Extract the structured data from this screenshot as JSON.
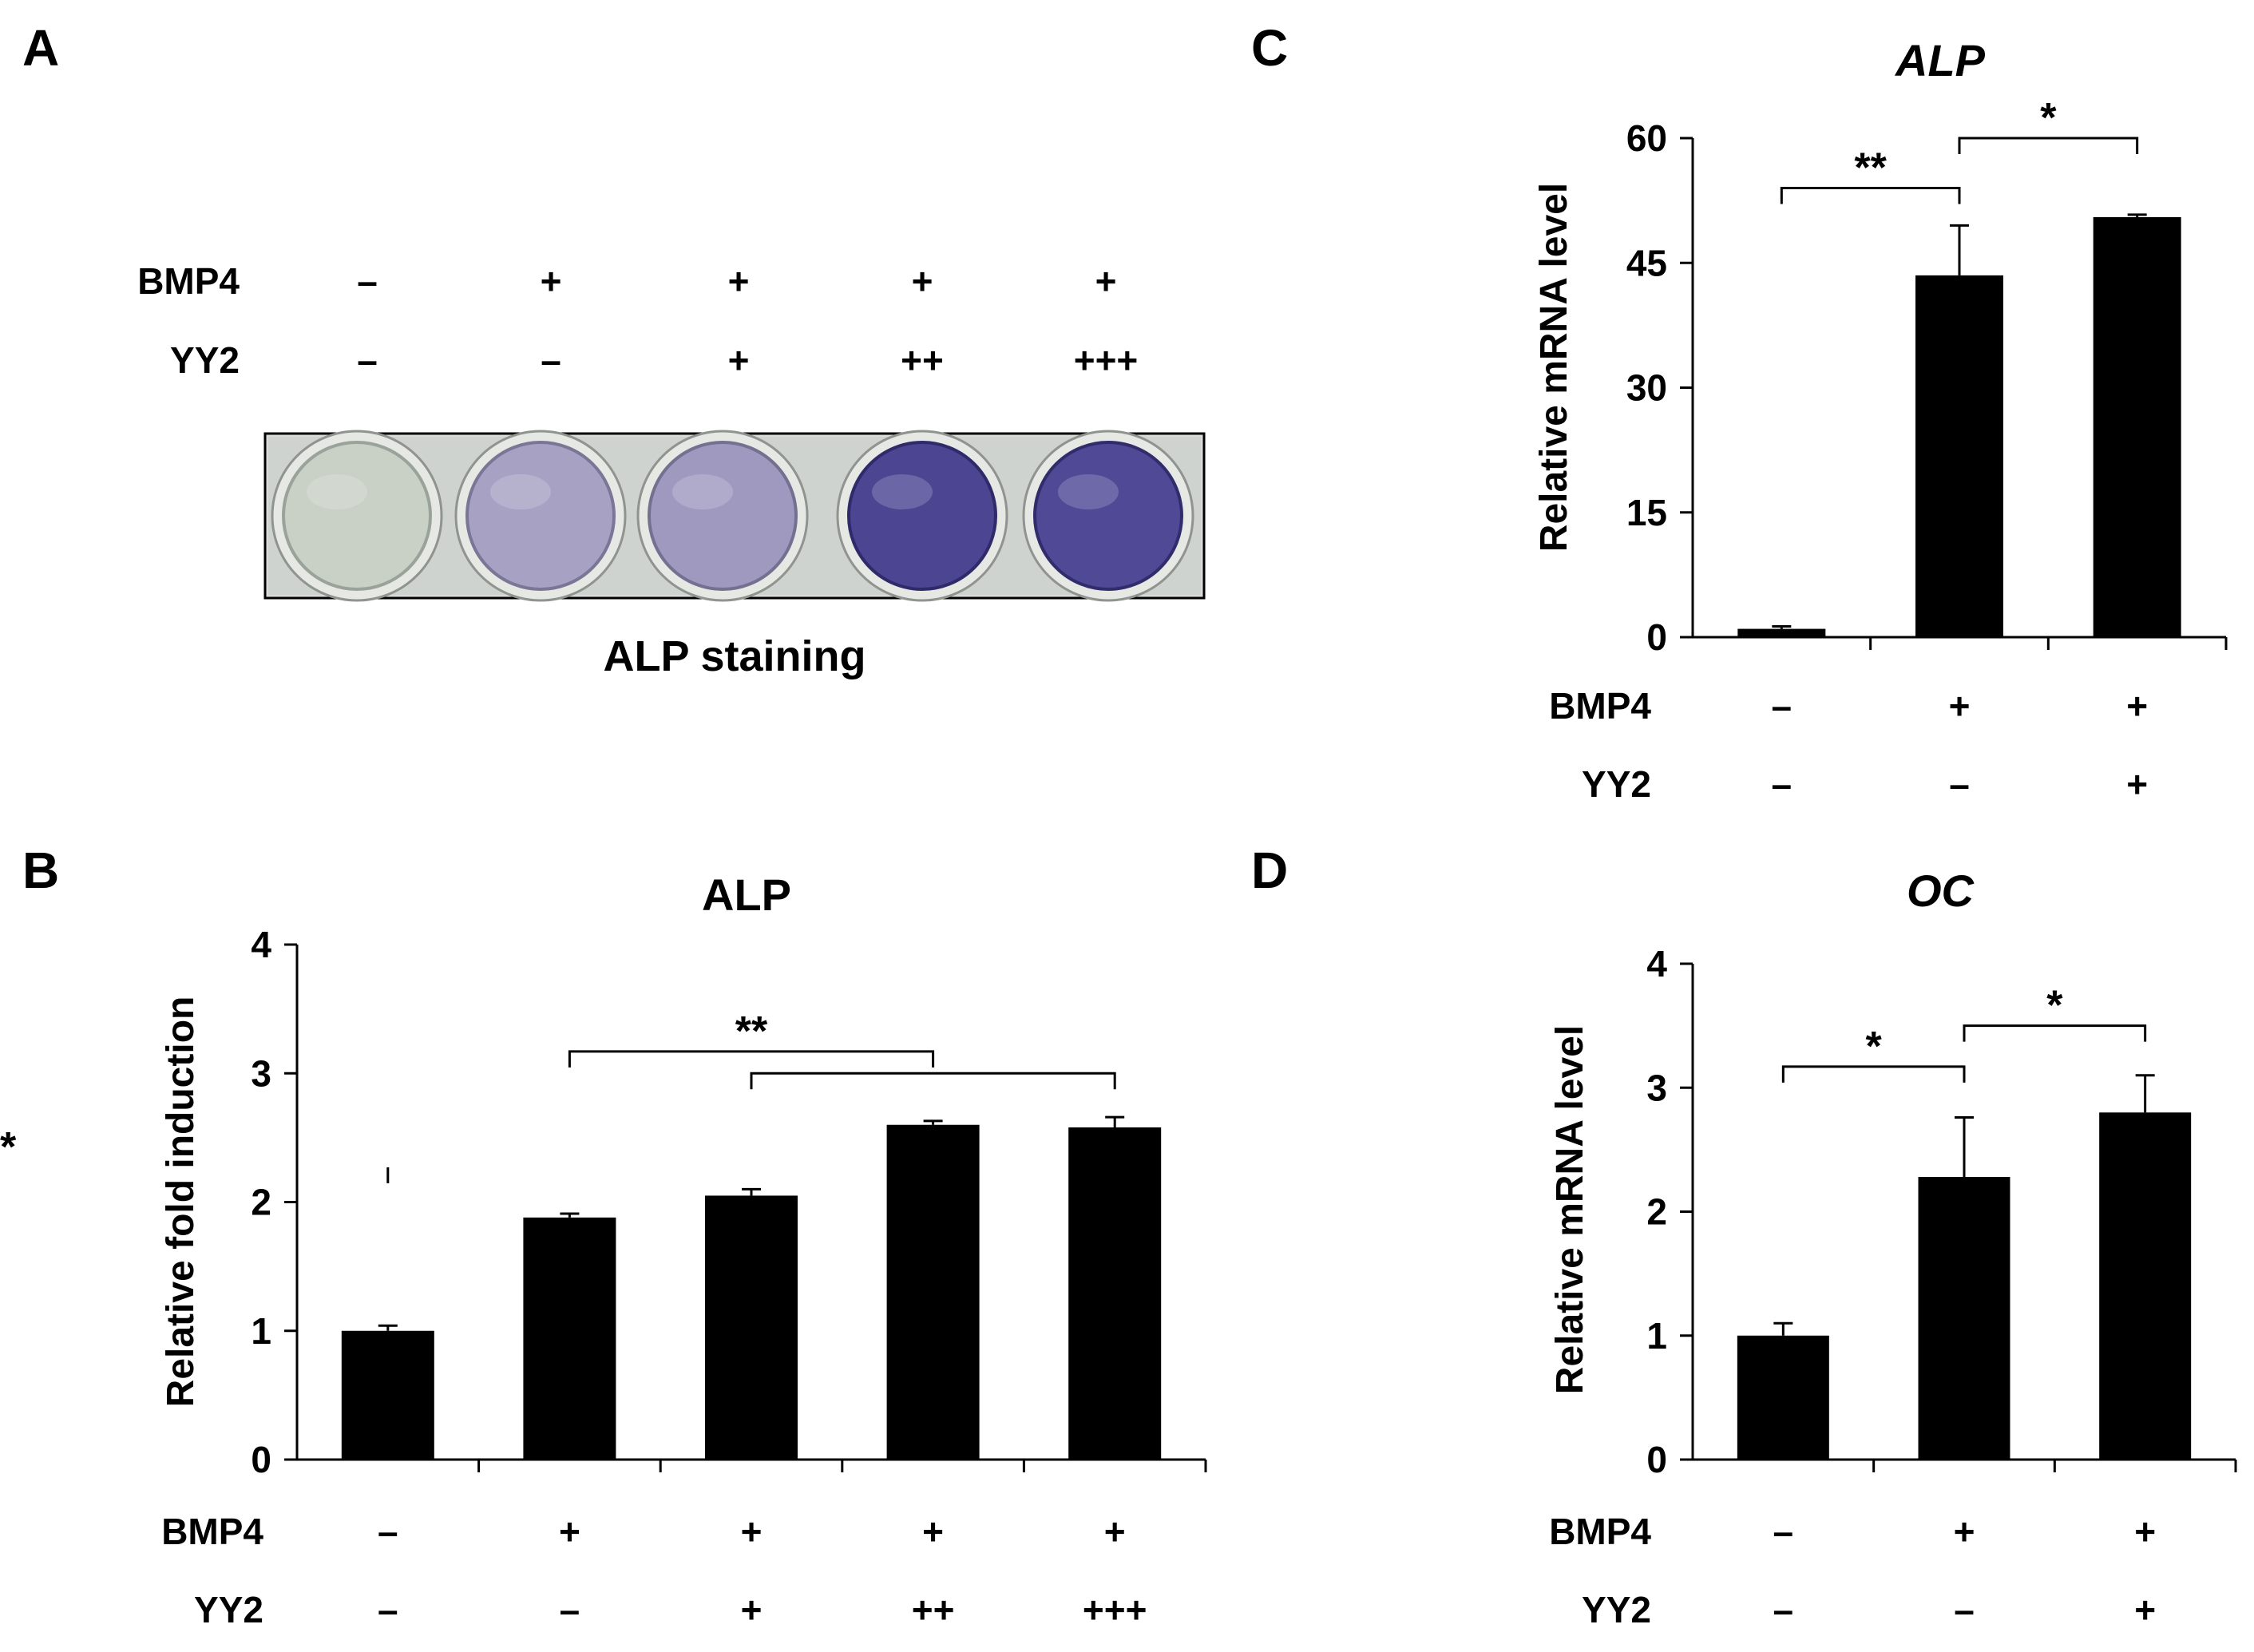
{
  "panels": {
    "A": {
      "letter": "A",
      "rows": [
        {
          "label": "BMP4",
          "values": [
            "–",
            "+",
            "+",
            "+",
            "+"
          ]
        },
        {
          "label": "YY2",
          "values": [
            "–",
            "–",
            "+",
            "++",
            "+++"
          ]
        }
      ],
      "caption": "ALP staining",
      "wells": [
        {
          "fill": "#c9d0c6",
          "edge": "#9aa39a",
          "intensity": 0.0
        },
        {
          "fill": "#a7a2c4",
          "edge": "#7b7596",
          "intensity": 0.35
        },
        {
          "fill": "#9f99c0",
          "edge": "#74708f",
          "intensity": 0.4
        },
        {
          "fill": "#4b4592",
          "edge": "#2f2a6a",
          "intensity": 0.85
        },
        {
          "fill": "#4f4996",
          "edge": "#312c6c",
          "intensity": 0.8
        }
      ]
    },
    "B": {
      "letter": "B"
    },
    "C": {
      "letter": "C"
    },
    "D": {
      "letter": "D"
    }
  },
  "chart_data": [
    {
      "id": "B",
      "type": "bar",
      "title": "ALP",
      "title_italic": false,
      "ylabel": "Relative fold induction",
      "xlabel": "",
      "ylim": [
        0,
        4
      ],
      "yticks": [
        0,
        1,
        2,
        3,
        4
      ],
      "values": [
        1.0,
        1.88,
        2.05,
        2.6,
        2.58
      ],
      "errors": [
        0.04,
        0.03,
        0.05,
        0.03,
        0.08
      ],
      "rows": [
        {
          "label": "BMP4",
          "values": [
            "–",
            "+",
            "+",
            "+",
            "+"
          ]
        },
        {
          "label": "YY2",
          "values": [
            "–",
            "–",
            "+",
            "++",
            "+++"
          ]
        }
      ],
      "significance": [
        {
          "from": 0,
          "to": 1,
          "y": 2.27,
          "label": "**"
        },
        {
          "from": 1,
          "to": [
            3
          ],
          "to_index": 3,
          "y": 3.17,
          "label": "**",
          "drop_at": [
            1,
            3
          ]
        },
        {
          "from": 2,
          "to_index": 4,
          "y": 3.0,
          "label": "",
          "drop_at": [
            2,
            4
          ]
        }
      ],
      "grid": false
    },
    {
      "id": "C",
      "type": "bar",
      "title": "ALP",
      "title_italic": true,
      "ylabel": "Relative mRNA level",
      "xlabel": "",
      "ylim": [
        0,
        60
      ],
      "yticks": [
        0,
        15,
        30,
        45,
        60
      ],
      "values": [
        1.0,
        43.5,
        50.5
      ],
      "errors": [
        0.3,
        6.0,
        0.3
      ],
      "rows": [
        {
          "label": "BMP4",
          "values": [
            "–",
            "+",
            "+"
          ]
        },
        {
          "label": "YY2",
          "values": [
            "–",
            "–",
            "+"
          ]
        }
      ],
      "significance": [
        {
          "from": 0,
          "to_index": 1,
          "y": 54,
          "label": "**"
        },
        {
          "from": 1,
          "to_index": 2,
          "y": 60,
          "label": "*"
        }
      ],
      "grid": false
    },
    {
      "id": "D",
      "type": "bar",
      "title": "OC",
      "title_italic": true,
      "ylabel": "Relative mRNA level",
      "xlabel": "",
      "ylim": [
        0,
        4
      ],
      "yticks": [
        0,
        1,
        2,
        3,
        4
      ],
      "values": [
        1.0,
        2.28,
        2.8
      ],
      "errors": [
        0.1,
        0.48,
        0.3
      ],
      "rows": [
        {
          "label": "BMP4",
          "values": [
            "–",
            "+",
            "+"
          ]
        },
        {
          "label": "YY2",
          "values": [
            "–",
            "–",
            "+"
          ]
        }
      ],
      "significance": [
        {
          "from": 0,
          "to_index": 1,
          "y": 3.17,
          "label": "*"
        },
        {
          "from": 1,
          "to_index": 2,
          "y": 3.5,
          "label": "*"
        }
      ],
      "grid": false
    }
  ]
}
